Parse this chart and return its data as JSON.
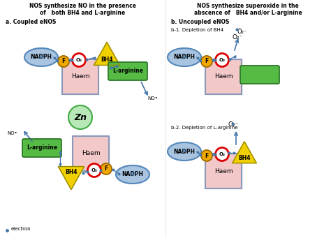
{
  "title_left_line1": "NOS synthesize NO in the presence",
  "title_left_line2": "of   both BH4 and L-arginine",
  "title_right_line1": "NOS synthesize superoxide in the",
  "title_right_line2": "abscence of   BH4 and/or L-arginine",
  "label_a": "a. Coupled eNOS",
  "label_b": "b. Uncoupled eNOS",
  "label_b1": "b-1. Depletion of BH4",
  "label_b2": "b-2. Depletion of L-arginine",
  "bg_color": "#ffffff",
  "nadph_color": "#a8c4e0",
  "haem_color": "#f2c8c8",
  "larginine_color": "#55bb44",
  "bh4_color": "#f0d000",
  "f_color": "#f0a800",
  "o2_ring_color": "#dd0000",
  "zn_color": "#b8e8b8",
  "electron_color": "#4477aa",
  "haem_border": "#8899bb",
  "nadph_border": "#5588bb"
}
